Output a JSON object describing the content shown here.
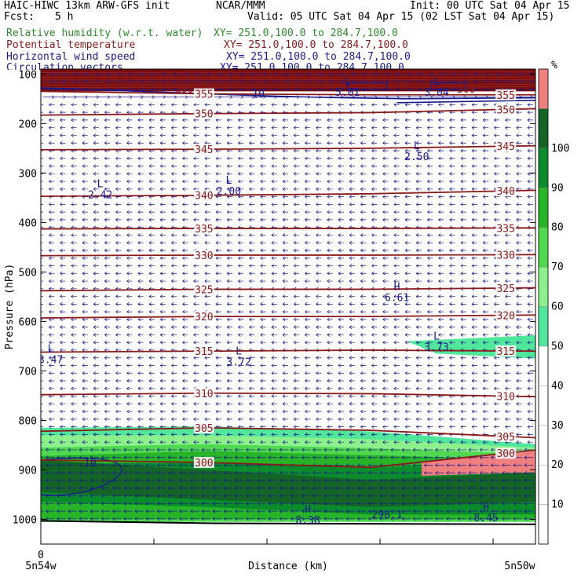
{
  "header": {
    "model": "HAIC-HIWC 13km ARW-GFS init",
    "org": "NCAR/MMM",
    "init": "Init: 00 UTC Sat 04 Apr 15",
    "fcst_label": "Fcst:",
    "fcst_value": "5 h",
    "valid": "Valid: 05 UTC Sat 04 Apr 15 (02 LST Sat 04 Apr 15)"
  },
  "fields": [
    {
      "name": "Relative humidity (w.r.t. water)",
      "xy": "XY= 251.0,100.0 to 284.7,100.0",
      "color": "#2e8b2e"
    },
    {
      "name": "Potential temperature",
      "xy": "XY= 251.0,100.0 to 284.7,100.0",
      "color": "#8b1a1a"
    },
    {
      "name": "Horizontal wind speed",
      "xy": "XY= 251.0,100.0 to 284.7,100.0",
      "color": "#1a1a8b"
    },
    {
      "name": "Circulation vectors",
      "xy": "XY= 251.0,100.0 to 284.7,100.0",
      "color": "#1a1a8b"
    }
  ],
  "chart_data": {
    "type": "heatmap",
    "xlabel": "Distance (km)",
    "ylabel": "Pressure (hPa)",
    "x_start_label": "5n54w",
    "x_end_label": "5n50w",
    "x_origin_label": "0",
    "ylim": [
      1050,
      90
    ],
    "yticks": [
      100,
      200,
      300,
      400,
      500,
      600,
      700,
      800,
      900,
      1000
    ],
    "colorbar": {
      "unit": "%",
      "levels": [
        10,
        20,
        30,
        40,
        50,
        60,
        70,
        80,
        90,
        100
      ],
      "colors": [
        "#ffffff",
        "#ffffff",
        "#ffffff",
        "#ffffff",
        "#ffffff",
        "#50e69b",
        "#8cf08c",
        "#50d850",
        "#28b428",
        "#0a8c2d",
        "#146428",
        "#f08080"
      ]
    },
    "theta_contours": [
      {
        "label": "355",
        "p": [
          135,
          140,
          142,
          142
        ],
        "color": "#8b1a1a"
      },
      {
        "label": "350",
        "p": [
          183,
          180,
          178,
          170
        ],
        "color": "#8b1a1a"
      },
      {
        "label": "345",
        "p": [
          253,
          252,
          250,
          245
        ],
        "color": "#8b1a1a"
      },
      {
        "label": "340",
        "p": [
          347,
          345,
          342,
          335
        ],
        "color": "#8b1a1a"
      },
      {
        "label": "335",
        "p": [
          413,
          412,
          412,
          411
        ],
        "color": "#8b1a1a"
      },
      {
        "label": "330",
        "p": [
          467,
          466,
          466,
          465
        ],
        "color": "#8b1a1a"
      },
      {
        "label": "325",
        "p": [
          538,
          535,
          535,
          532
        ],
        "color": "#8b1a1a"
      },
      {
        "label": "320",
        "p": [
          593,
          590,
          590,
          587
        ],
        "color": "#8b1a1a"
      },
      {
        "label": "315",
        "p": [
          662,
          660,
          658,
          660
        ],
        "color": "#8b1a1a"
      },
      {
        "label": "310",
        "p": [
          748,
          745,
          746,
          752
        ],
        "color": "#8b1a1a"
      },
      {
        "label": "305",
        "p": [
          822,
          815,
          820,
          835
        ],
        "color": "#8b1a1a"
      },
      {
        "label": "300",
        "p": [
          880,
          885,
          895,
          860
        ],
        "color": "#8b1a1a"
      }
    ],
    "extrema": [
      {
        "type": "L",
        "value": "2.42",
        "x": 0.12,
        "p": 332
      },
      {
        "type": "L",
        "value": "2.00",
        "x": 0.38,
        "p": 325
      },
      {
        "type": "L",
        "value": "2.50",
        "x": 0.76,
        "p": 255
      },
      {
        "type": "H",
        "value": "6.61",
        "x": 0.72,
        "p": 540
      },
      {
        "type": "L",
        "value": "3.73",
        "x": 0.8,
        "p": 640
      },
      {
        "type": "L",
        "value": "3.47",
        "x": 0.02,
        "p": 665
      },
      {
        "type": "L",
        "value": "3.72",
        "x": 0.4,
        "p": 670
      },
      {
        "type": "H",
        "value": "8.38",
        "x": 0.54,
        "p": 990
      },
      {
        "type": "H",
        "value": "8.45",
        "x": 0.9,
        "p": 985
      },
      {
        "type": "L",
        "value": "5.01",
        "x": 0.62,
        "p": 125
      },
      {
        "type": "L",
        "value": "3.04",
        "x": 0.8,
        "p": 125
      }
    ],
    "wind_contour_labels": [
      {
        "label": "10",
        "x": 0.44,
        "p": 140
      },
      {
        "label": "10",
        "x": 0.1,
        "p": 885
      },
      {
        "label": "298.1",
        "x": 0.7,
        "p": 990
      },
      {
        "label": "300",
        "x": 0.29,
        "p": 130
      },
      {
        "label": "300",
        "x": 0.86,
        "p": 130
      }
    ]
  }
}
